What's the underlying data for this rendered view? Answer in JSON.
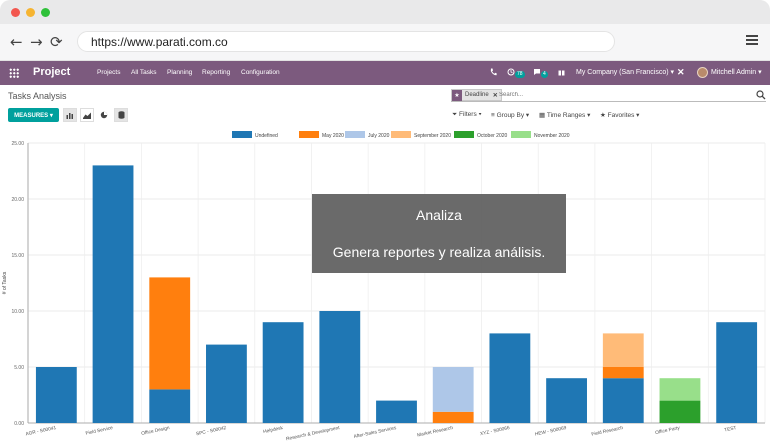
{
  "browser": {
    "url": "https://www.parati.com.co",
    "back_icon": "←",
    "forward_icon": "→",
    "reload_icon": "⟳"
  },
  "navbar": {
    "brand": "Project",
    "menu": [
      "Projects",
      "All Tasks",
      "Planning",
      "Reporting",
      "Configuration"
    ],
    "activity_badge": "78",
    "messages_badge": "4",
    "company": "My Company (San Francisco) ▾",
    "user": "Mitchell Admin ▾",
    "color": "#7c5a7e"
  },
  "control_panel": {
    "title": "Tasks Analysis",
    "facet_label": "Deadline",
    "search_placeholder": "Search...",
    "measures_label": "MEASURES ▾",
    "filters_label": "Filters ▾",
    "group_by_label": "Group By ▾",
    "time_ranges_label": "Time Ranges ▾",
    "favorites_label": "Favorites ▾"
  },
  "chart_data": {
    "type": "bar",
    "stacked": true,
    "ylabel": "# of Tasks",
    "ylim": [
      0,
      25
    ],
    "yticks": [
      "0.00",
      "5.00",
      "10.00",
      "15.00",
      "20.00",
      "25.00"
    ],
    "legend_position": "top-center",
    "categories": [
      "AGR - S00041",
      "Field Service",
      "Office Design",
      "SPC - S00042",
      "Helpdesk",
      "Research & Development",
      "After-Sales Services",
      "Market Research",
      "XYZ - S00066",
      "HEW - S00069",
      "Field Research",
      "Office Party",
      "TEST"
    ],
    "series": [
      {
        "name": "Undefined",
        "color": "#1f77b4",
        "values": [
          5,
          23,
          3,
          7,
          9,
          10,
          2,
          0,
          8,
          4,
          4,
          0,
          9
        ]
      },
      {
        "name": "May 2020",
        "color": "#ff7f0e",
        "values": [
          0,
          0,
          10,
          0,
          0,
          0,
          0,
          1,
          0,
          0,
          1,
          0,
          0
        ]
      },
      {
        "name": "July 2020",
        "color": "#aec7e8",
        "values": [
          0,
          0,
          0,
          0,
          0,
          0,
          0,
          4,
          0,
          0,
          0,
          0,
          0
        ]
      },
      {
        "name": "September 2020",
        "color": "#ffbb78",
        "values": [
          0,
          0,
          0,
          0,
          0,
          0,
          0,
          0,
          0,
          0,
          3,
          0,
          0
        ]
      },
      {
        "name": "October 2020",
        "color": "#2ca02c",
        "values": [
          0,
          0,
          0,
          0,
          0,
          0,
          0,
          0,
          0,
          0,
          0,
          2,
          0
        ]
      },
      {
        "name": "November 2020",
        "color": "#98df8a",
        "values": [
          0,
          0,
          0,
          0,
          0,
          0,
          0,
          0,
          0,
          0,
          0,
          2,
          0
        ]
      }
    ]
  },
  "overlay": {
    "title": "Analiza",
    "subtitle": "Genera reportes y realiza análisis."
  }
}
